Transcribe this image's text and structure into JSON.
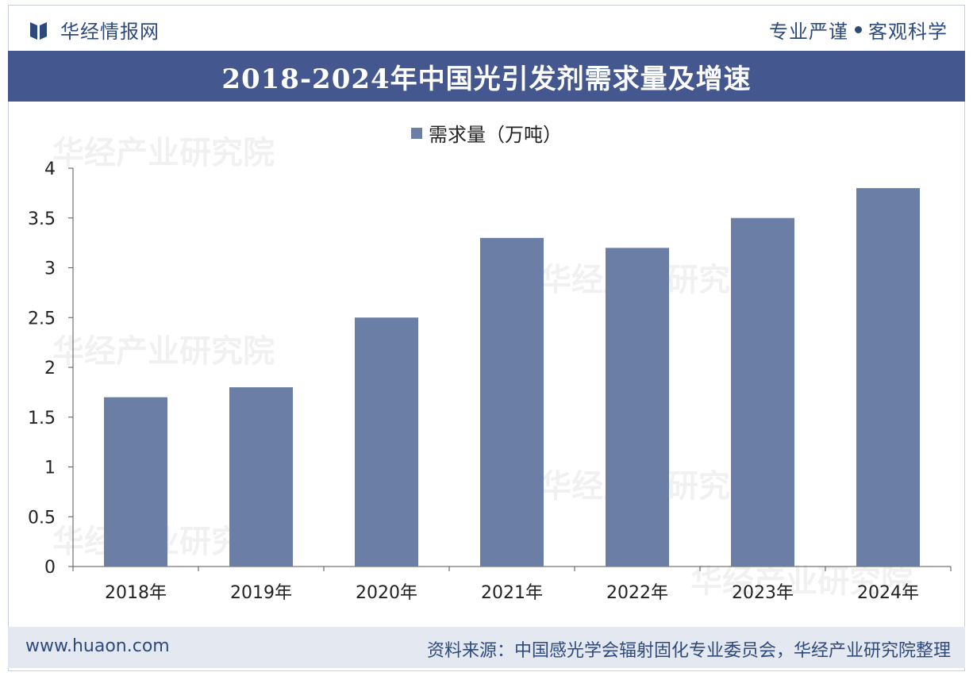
{
  "header": {
    "brand": "华经情报网",
    "slogan_left": "专业严谨",
    "slogan_right": "客观科学"
  },
  "colors": {
    "accent": "#44588f",
    "bar": "#6a7ea6",
    "brand_text": "#2e4a7d",
    "footer_bg": "#e4e8f0"
  },
  "watermark": "华经产业研究院",
  "chart_data": {
    "type": "bar",
    "title": "2018-2024年中国光引发剂需求量及增速",
    "categories": [
      "2018年",
      "2019年",
      "2020年",
      "2021年",
      "2022年",
      "2023年",
      "2024年"
    ],
    "series": [
      {
        "name": "需求量（万吨）",
        "values": [
          1.7,
          1.8,
          2.5,
          3.3,
          3.2,
          3.5,
          3.8
        ]
      }
    ],
    "ylim": [
      0,
      4
    ],
    "yticks": [
      "0",
      "0.5",
      "1",
      "1.5",
      "2",
      "2.5",
      "3",
      "3.5",
      "4"
    ],
    "xlabel": "",
    "ylabel": "",
    "legend_position": "top-center",
    "grid": false
  },
  "footer": {
    "url": "www.huaon.com",
    "source": "资料来源：中国感光学会辐射固化专业委员会，华经产业研究院整理"
  }
}
